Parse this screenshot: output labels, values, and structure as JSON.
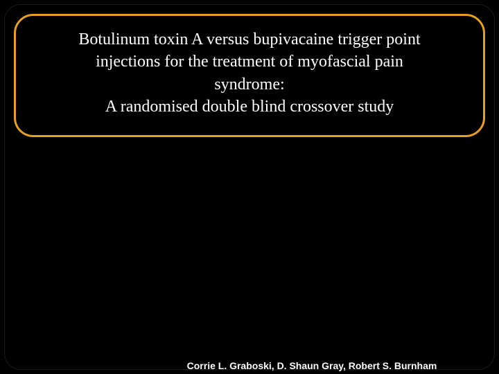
{
  "slide": {
    "title_line1": "Botulinum toxin A versus bupivacaine trigger point",
    "title_line2": "injections for the treatment of myofascial pain",
    "title_line3": "syndrome:",
    "title_line4": "A randomised double blind crossover study",
    "authors": "Corrie L. Graboski, D. Shaun Gray, Robert S. Burnham",
    "styling": {
      "background_color": "#000000",
      "title_border_color": "#e8a022",
      "title_border_width": 3,
      "title_border_radius": 28,
      "title_text_color": "#ffffff",
      "title_font_size": 24,
      "title_font_family": "Georgia, Times New Roman, serif",
      "authors_text_color": "#ffffff",
      "authors_font_size": 14,
      "authors_font_family": "Arial, Helvetica, sans-serif",
      "authors_font_weight": "bold",
      "slide_width": 720,
      "slide_height": 540
    }
  }
}
